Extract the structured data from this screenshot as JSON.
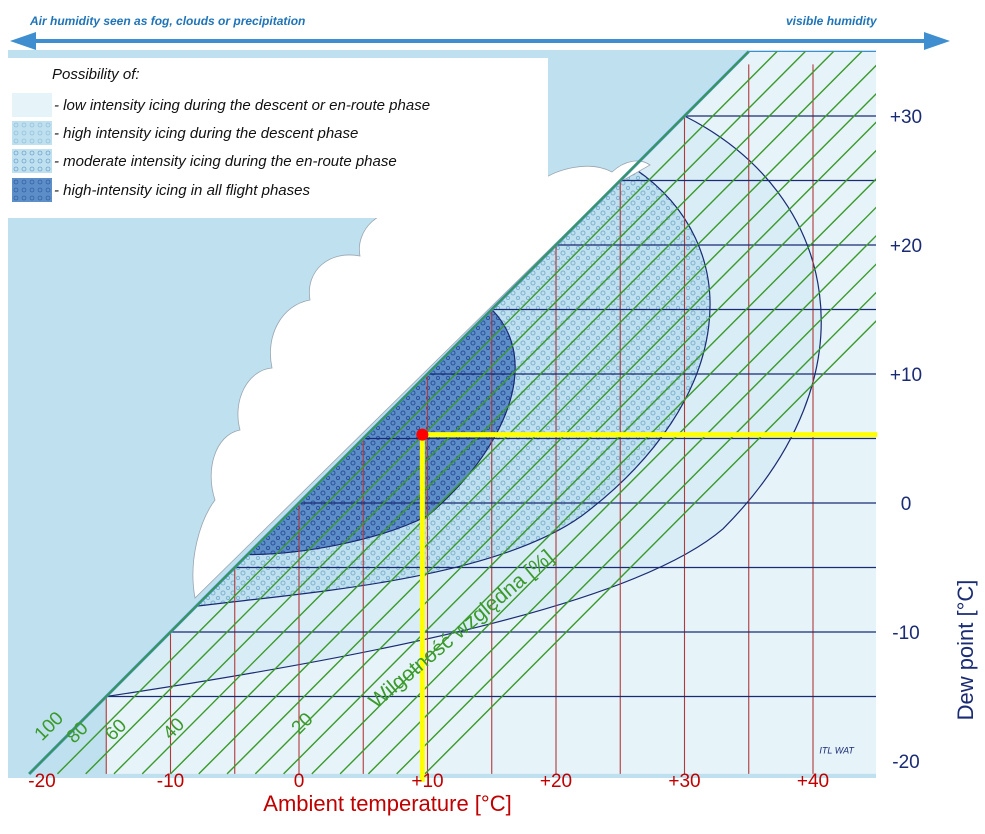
{
  "header": {
    "left_label": "Air humidity seen as fog, clouds or precipitation",
    "right_label": "visible humidity"
  },
  "legend": {
    "title": "Possibility of:",
    "items": [
      {
        "label": "- low intensity icing during the descent or en-route phase",
        "color": "#e6f3f9"
      },
      {
        "label": "- high intensity icing during the descent phase",
        "color": "#bfe0ee"
      },
      {
        "label": "- moderate intensity icing during the en-route phase",
        "color": "#7fb7d8"
      },
      {
        "label": "- high-intensity icing in all flight phases",
        "color": "#2f6db3"
      }
    ]
  },
  "chart_data": {
    "type": "line",
    "xlabel": "Ambient temperature [°C]",
    "ylabel": "Dew point [°C]",
    "x_tick_labels": [
      "-20",
      "-10",
      "0",
      "+10",
      "+20",
      "+30",
      "+40"
    ],
    "x_tick_values": [
      -20,
      -10,
      0,
      10,
      20,
      30,
      40
    ],
    "y_tick_labels": [
      "+30",
      "+20",
      "+10",
      "0",
      "-10",
      "-20"
    ],
    "y_tick_values": [
      30,
      20,
      10,
      0,
      -10,
      -20
    ],
    "xlim": [
      -21,
      45
    ],
    "ylim": [
      -21,
      34
    ],
    "grid": true,
    "grid_x_lines": [
      -15,
      -10,
      -5,
      0,
      5,
      10,
      15,
      20,
      25,
      30,
      35,
      40
    ],
    "grid_y_lines": [
      -15,
      -10,
      -5,
      0,
      5,
      10,
      15,
      20,
      25,
      30
    ],
    "humidity_label": "Wilgotność względna [%]",
    "humidity_values": [
      100,
      80,
      60,
      40,
      20
    ],
    "humidity_labels": [
      "100",
      "80",
      "60",
      "40",
      "20"
    ],
    "saturation_line": {
      "x": [
        -21,
        35
      ],
      "y": [
        -21,
        35
      ]
    },
    "highlight_point": {
      "x": 9.6,
      "y": 5.3,
      "color": "#ff0000"
    },
    "highlight_lines_color": "#ffff00",
    "credit": "ITL WAT",
    "colors": {
      "background": "#bfe0ee",
      "grid_vertical": "#b03a3a",
      "grid_horizontal": "#1a2b73",
      "humidity_lines": "#3a9a2a",
      "x_tick_text": "#c00000",
      "y_tick_text": "#1a2b73"
    }
  }
}
